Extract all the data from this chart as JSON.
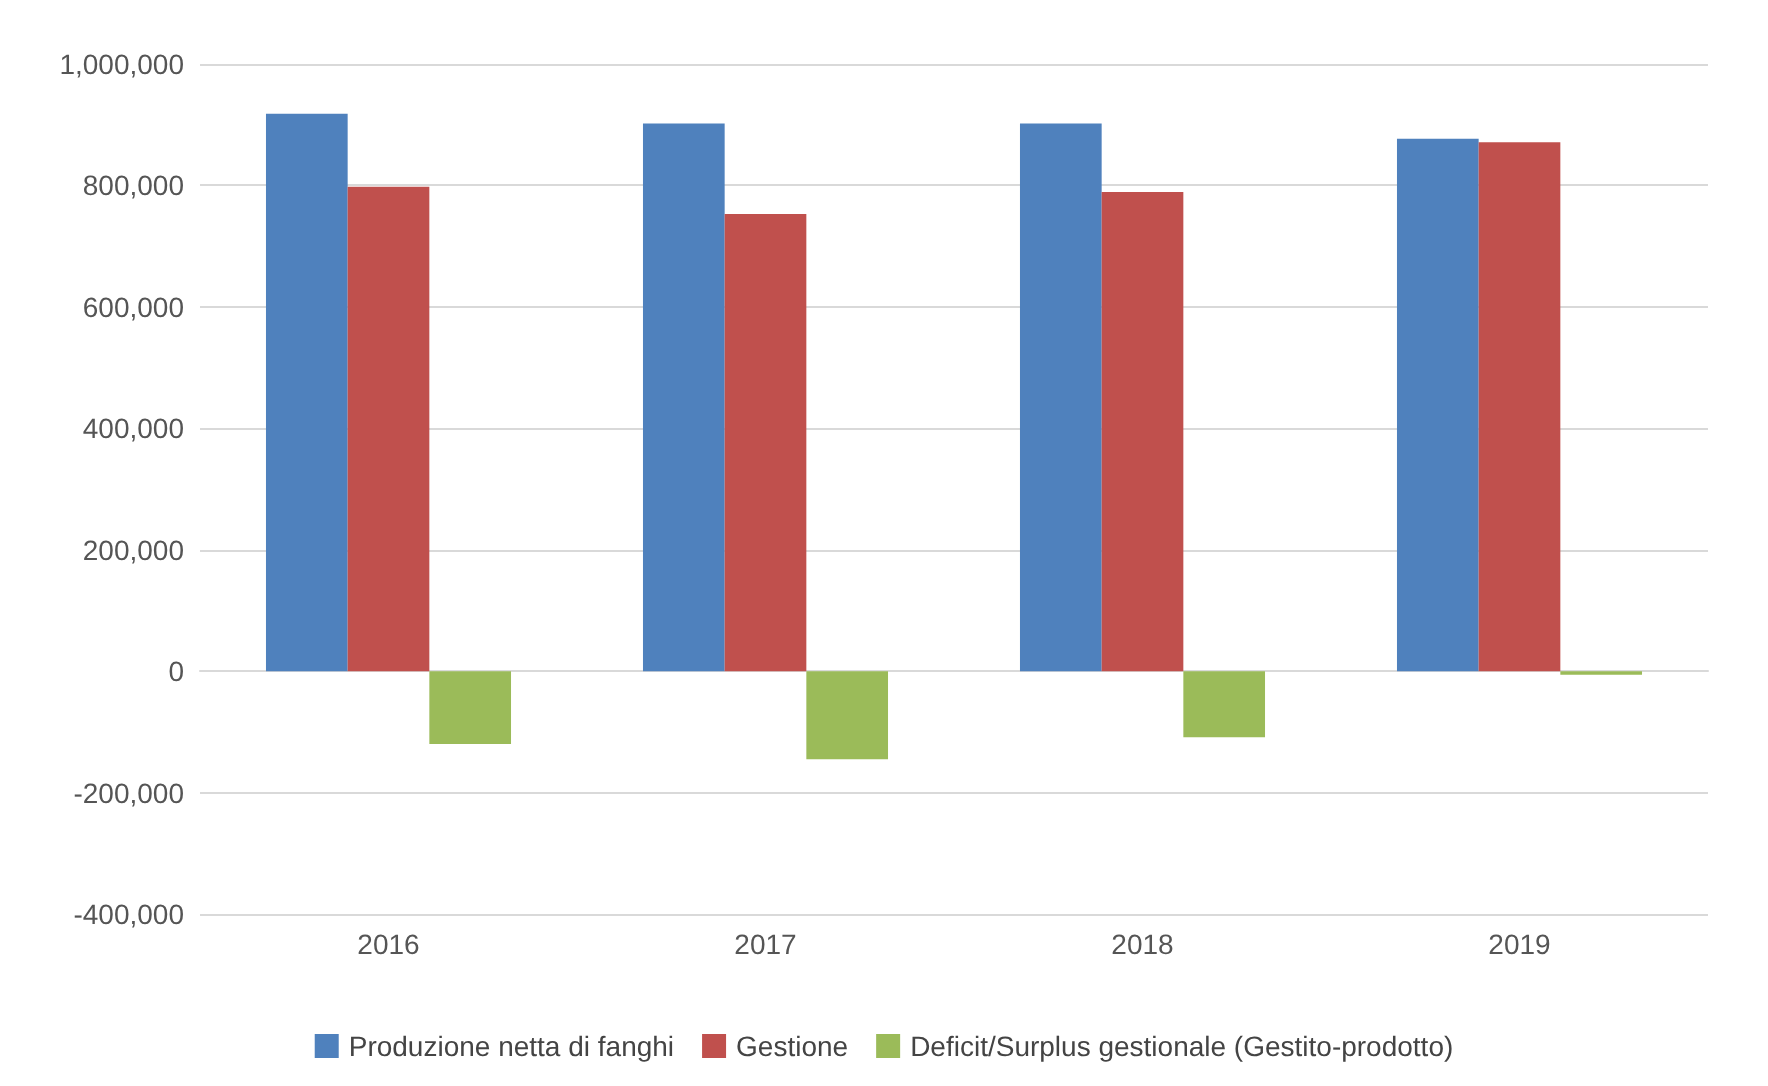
{
  "chart_data": {
    "type": "bar",
    "categories": [
      "2016",
      "2017",
      "2018",
      "2019"
    ],
    "series": [
      {
        "name": "Produzione netta di fanghi",
        "color": "#4f81bd",
        "values": [
          918000,
          902000,
          902000,
          877000
        ]
      },
      {
        "name": "Gestione",
        "color": "#c0504d",
        "values": [
          798000,
          753000,
          789000,
          871000
        ]
      },
      {
        "name": "Deficit/Surplus gestionale (Gestito-prodotto)",
        "color": "#9bbb59",
        "values": [
          -120000,
          -145000,
          -109000,
          -6000
        ]
      }
    ],
    "ylim": [
      -400000,
      1000000
    ],
    "yticks": [
      {
        "value": -400000,
        "label": "-400,000"
      },
      {
        "value": -200000,
        "label": "-200,000"
      },
      0,
      {
        "value": 200000,
        "label": "200,000"
      },
      {
        "value": 400000,
        "label": "400,000"
      },
      {
        "value": 600000,
        "label": "600,000"
      },
      {
        "value": 800000,
        "label": "800,000"
      },
      {
        "value": 1000000,
        "label": "1,000,000"
      }
    ],
    "grid": "y",
    "legend": "bottom"
  }
}
